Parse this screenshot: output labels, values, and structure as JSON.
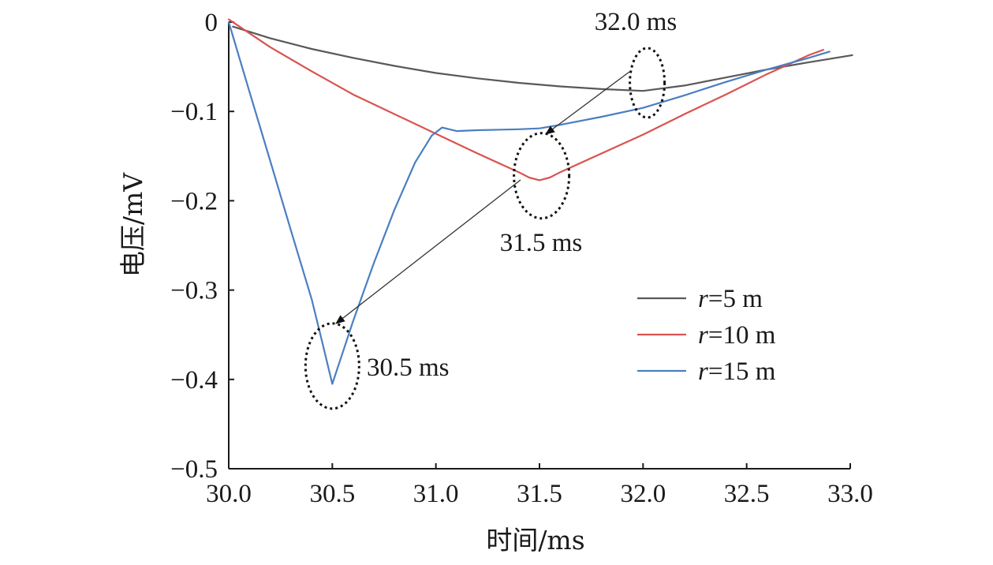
{
  "chart_data": {
    "type": "line",
    "xlabel": "时间/ms",
    "ylabel": "电压/mV",
    "xlim": [
      30.0,
      33.0
    ],
    "ylim": [
      -0.5,
      0
    ],
    "x_ticks": [
      "30.0",
      "30.5",
      "31.0",
      "31.5",
      "32.0",
      "32.5",
      "33.0"
    ],
    "y_ticks": [
      "0",
      "−0.1",
      "−0.2",
      "−0.3",
      "−0.4",
      "−0.5"
    ],
    "legend_position": "right",
    "grid": false,
    "series": [
      {
        "name": "r=5 m",
        "legend_italic": "r",
        "legend_rest": "=5 m",
        "color": "#595959",
        "x": [
          30.02,
          30.2,
          30.4,
          30.6,
          30.8,
          31.0,
          31.2,
          31.4,
          31.6,
          31.8,
          32.0,
          32.2,
          32.4,
          32.6,
          32.8,
          33.01
        ],
        "y": [
          -0.005,
          -0.018,
          -0.03,
          -0.04,
          -0.049,
          -0.057,
          -0.063,
          -0.068,
          -0.072,
          -0.075,
          -0.077,
          -0.071,
          -0.062,
          -0.053,
          -0.045,
          -0.037
        ]
      },
      {
        "name": "r=10 m",
        "legend_italic": "r",
        "legend_rest": "=10 m",
        "color": "#d9534f",
        "x": [
          30.0,
          30.2,
          30.4,
          30.6,
          30.8,
          31.0,
          31.2,
          31.4,
          31.45,
          31.5,
          31.55,
          31.6,
          31.8,
          32.0,
          32.2,
          32.4,
          32.6,
          32.8,
          32.87
        ],
        "y": [
          0.003,
          -0.028,
          -0.055,
          -0.081,
          -0.103,
          -0.125,
          -0.147,
          -0.168,
          -0.174,
          -0.177,
          -0.174,
          -0.168,
          -0.147,
          -0.126,
          -0.103,
          -0.081,
          -0.058,
          -0.037,
          -0.031
        ]
      },
      {
        "name": "r=15 m",
        "legend_italic": "r",
        "legend_rest": "=15 m",
        "color": "#4a7fc1",
        "x": [
          30.0,
          30.1,
          30.2,
          30.3,
          30.4,
          30.45,
          30.5,
          30.55,
          30.6,
          30.7,
          30.8,
          30.9,
          30.98,
          31.03,
          31.1,
          31.2,
          31.4,
          31.5,
          31.6,
          31.8,
          32.0,
          32.2,
          32.4,
          32.6,
          32.8,
          32.9
        ],
        "y": [
          0.0,
          -0.078,
          -0.155,
          -0.233,
          -0.31,
          -0.357,
          -0.405,
          -0.37,
          -0.335,
          -0.27,
          -0.21,
          -0.157,
          -0.127,
          -0.118,
          -0.122,
          -0.121,
          -0.12,
          -0.119,
          -0.115,
          -0.106,
          -0.096,
          -0.082,
          -0.067,
          -0.053,
          -0.04,
          -0.033
        ]
      }
    ],
    "annotations": [
      {
        "text": "32.0 ms",
        "x": 32.02,
        "y": -0.068
      },
      {
        "text": "31.5 ms",
        "x": 31.51,
        "y": -0.172
      },
      {
        "text": "30.5 ms",
        "x": 30.5,
        "y": -0.385
      }
    ]
  }
}
